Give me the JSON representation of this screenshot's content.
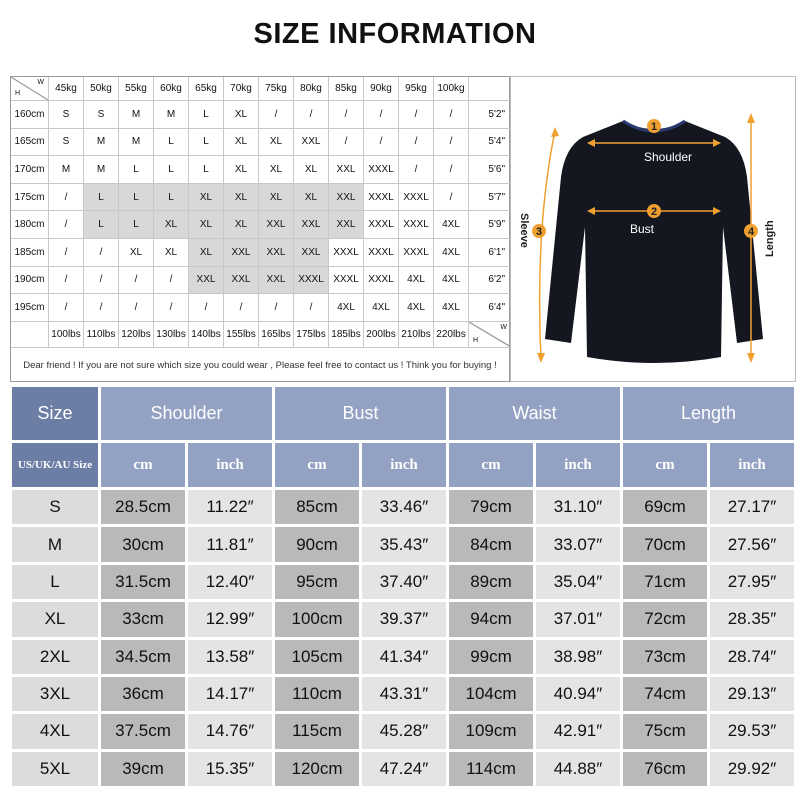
{
  "title": "SIZE INFORMATION",
  "recommendation": {
    "corner": {
      "h": "H",
      "w": "W"
    },
    "weights_kg": [
      "45kg",
      "50kg",
      "55kg",
      "60kg",
      "65kg",
      "70kg",
      "75kg",
      "80kg",
      "85kg",
      "90kg",
      "95kg",
      "100kg"
    ],
    "weights_lbs": [
      "100lbs",
      "110lbs",
      "120lbs",
      "130lbs",
      "140lbs",
      "155lbs",
      "165lbs",
      "175lbs",
      "185lbs",
      "200lbs",
      "210lbs",
      "220lbs"
    ],
    "rows": [
      {
        "h_cm": "160cm",
        "h_ft": "5'2\"",
        "cells": [
          "S",
          "S",
          "M",
          "M",
          "L",
          "XL",
          "/",
          "/",
          "/",
          "/",
          "/",
          "/"
        ]
      },
      {
        "h_cm": "165cm",
        "h_ft": "5'4\"",
        "cells": [
          "S",
          "M",
          "M",
          "L",
          "L",
          "XL",
          "XL",
          "XXL",
          "/",
          "/",
          "/",
          "/"
        ]
      },
      {
        "h_cm": "170cm",
        "h_ft": "5'6\"",
        "cells": [
          "M",
          "M",
          "L",
          "L",
          "L",
          "XL",
          "XL",
          "XL",
          "XXL",
          "XXXL",
          "/",
          "/"
        ]
      },
      {
        "h_cm": "175cm",
        "h_ft": "5'7\"",
        "cells": [
          "/",
          "L",
          "L",
          "L",
          "XL",
          "XL",
          "XL",
          "XL",
          "XXL",
          "XXXL",
          "XXXL",
          "/"
        ]
      },
      {
        "h_cm": "180cm",
        "h_ft": "5'9\"",
        "cells": [
          "/",
          "L",
          "L",
          "XL",
          "XL",
          "XL",
          "XXL",
          "XXL",
          "XXL",
          "XXXL",
          "XXXL",
          "4XL"
        ]
      },
      {
        "h_cm": "185cm",
        "h_ft": "6'1\"",
        "cells": [
          "/",
          "/",
          "XL",
          "XL",
          "XL",
          "XXL",
          "XXL",
          "XXL",
          "XXXL",
          "XXXL",
          "XXXL",
          "4XL"
        ]
      },
      {
        "h_cm": "190cm",
        "h_ft": "6'2\"",
        "cells": [
          "/",
          "/",
          "/",
          "/",
          "XXL",
          "XXL",
          "XXL",
          "XXXL",
          "XXXL",
          "XXXL",
          "4XL",
          "4XL"
        ]
      },
      {
        "h_cm": "195cm",
        "h_ft": "6'4\"",
        "cells": [
          "/",
          "/",
          "/",
          "/",
          "/",
          "/",
          "/",
          "/",
          "4XL",
          "4XL",
          "4XL",
          "4XL"
        ]
      }
    ],
    "note": "Dear friend ! If you are not sure which size you could wear , Please feel free to contact us ! Think you for buying !"
  },
  "diagram": {
    "labels": [
      {
        "num": "1",
        "text": "Shoulder"
      },
      {
        "num": "2",
        "text": "Bust"
      },
      {
        "num": "3",
        "text": "Sleeve"
      },
      {
        "num": "4",
        "text": "Length"
      }
    ],
    "colors": {
      "garment": "#14171f",
      "arrow": "#f0a030"
    }
  },
  "size_table": {
    "size_header": "Size",
    "groups": [
      "Shoulder",
      "Bust",
      "Waist",
      "Length"
    ],
    "subheader_size": "US/UK/AU Size",
    "unit_cm": "cm",
    "unit_inch": "inch",
    "rows": [
      {
        "size": "S",
        "values": [
          "28.5cm",
          "11.22″",
          "85cm",
          "33.46″",
          "79cm",
          "31.10″",
          "69cm",
          "27.17″"
        ]
      },
      {
        "size": "M",
        "values": [
          "30cm",
          "11.81″",
          "90cm",
          "35.43″",
          "84cm",
          "33.07″",
          "70cm",
          "27.56″"
        ]
      },
      {
        "size": "L",
        "values": [
          "31.5cm",
          "12.40″",
          "95cm",
          "37.40″",
          "89cm",
          "35.04″",
          "71cm",
          "27.95″"
        ]
      },
      {
        "size": "XL",
        "values": [
          "33cm",
          "12.99″",
          "100cm",
          "39.37″",
          "94cm",
          "37.01″",
          "72cm",
          "28.35″"
        ]
      },
      {
        "size": "2XL",
        "values": [
          "34.5cm",
          "13.58″",
          "105cm",
          "41.34″",
          "99cm",
          "38.98″",
          "73cm",
          "28.74″"
        ]
      },
      {
        "size": "3XL",
        "values": [
          "36cm",
          "14.17″",
          "110cm",
          "43.31″",
          "104cm",
          "40.94″",
          "74cm",
          "29.13″"
        ]
      },
      {
        "size": "4XL",
        "values": [
          "37.5cm",
          "14.76″",
          "115cm",
          "45.28″",
          "109cm",
          "42.91″",
          "75cm",
          "29.53″"
        ]
      },
      {
        "size": "5XL",
        "values": [
          "39cm",
          "15.35″",
          "120cm",
          "47.24″",
          "114cm",
          "44.88″",
          "76cm",
          "29.92″"
        ]
      }
    ],
    "colors": {
      "header": "#93a2c2",
      "header_dark": "#6c7ea6",
      "cm_cell": "#b9b9b9",
      "inch_cell": "#e4e4e4"
    }
  }
}
